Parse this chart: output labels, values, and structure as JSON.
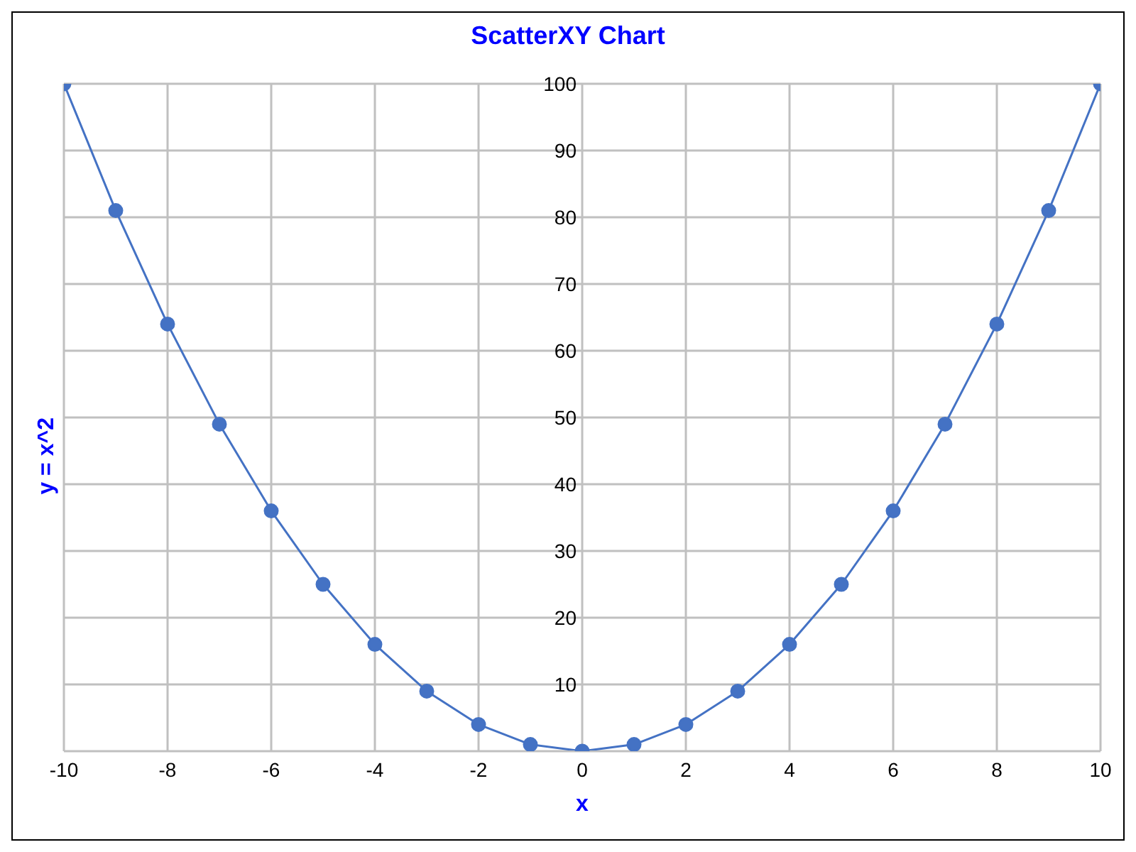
{
  "chart_data": {
    "type": "line",
    "title": "ScatterXY Chart",
    "xlabel": "x",
    "ylabel": "y = x^2",
    "x": [
      -10,
      -9,
      -8,
      -7,
      -6,
      -5,
      -4,
      -3,
      -2,
      -1,
      0,
      1,
      2,
      3,
      4,
      5,
      6,
      7,
      8,
      9,
      10
    ],
    "series": [
      {
        "color": "#4472c4",
        "values": [
          100,
          81,
          64,
          49,
          36,
          25,
          16,
          9,
          4,
          1,
          0,
          1,
          4,
          9,
          16,
          25,
          36,
          49,
          64,
          81,
          100
        ]
      }
    ],
    "xlim": [
      -10,
      10
    ],
    "xticks": [
      -10,
      -8,
      -6,
      -4,
      -2,
      0,
      2,
      4,
      6,
      8,
      10
    ],
    "ylim": [
      0,
      100
    ],
    "yticks": [
      {
        "value": 0,
        "label": null
      },
      10,
      20,
      30,
      40,
      50,
      60,
      70,
      80,
      90,
      100
    ],
    "grid": true,
    "marker": "circle",
    "line_style": "solid",
    "legend": false
  }
}
